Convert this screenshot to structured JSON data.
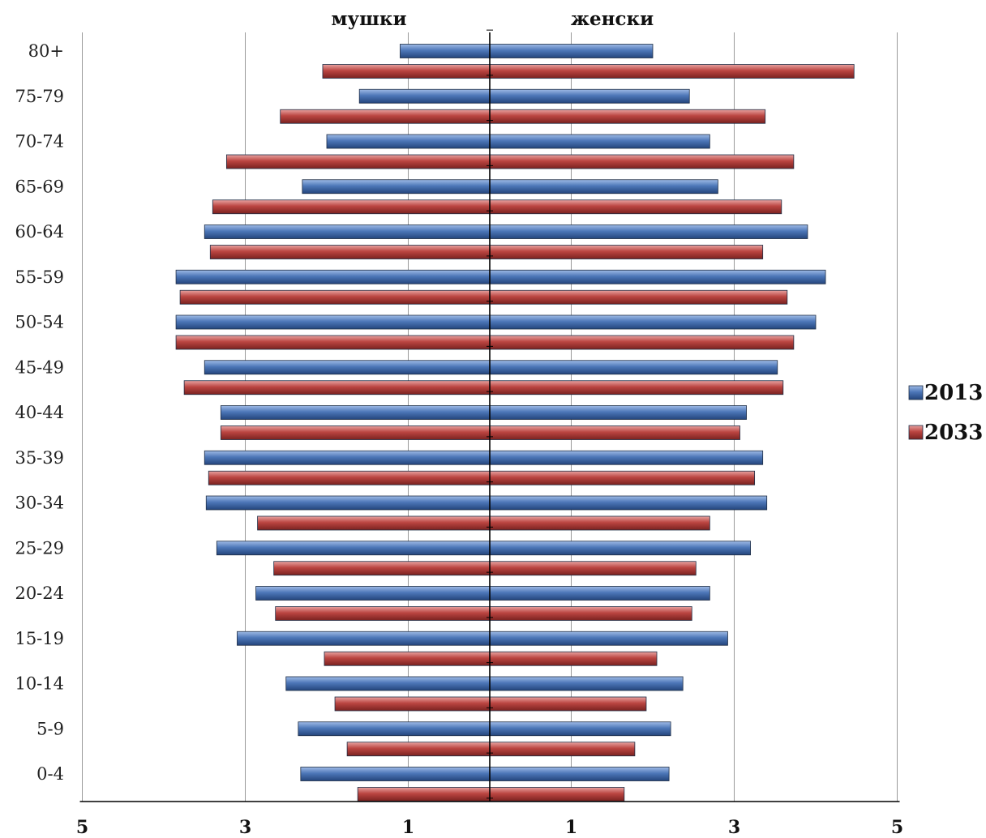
{
  "chart_data": {
    "type": "bar",
    "orientation": "horizontal",
    "subtype": "population-pyramid",
    "side_titles": {
      "left": "мушки",
      "right": "женски"
    },
    "categories": [
      "80+",
      "75-79",
      "70-74",
      "65-69",
      "60-64",
      "55-59",
      "50-54",
      "45-49",
      "40-44",
      "35-39",
      "30-34",
      "25-29",
      "20-24",
      "15-19",
      "10-14",
      "5-9",
      "0-4"
    ],
    "x_tick_labels": [
      "5",
      "3",
      "1",
      "1",
      "3",
      "5"
    ],
    "xlim": [
      -5,
      5
    ],
    "grid": true,
    "legend_position": "right",
    "series": [
      {
        "name": "2013",
        "color": "#4a72b0",
        "male": [
          1.1,
          1.6,
          2.0,
          2.3,
          3.5,
          3.85,
          3.85,
          3.5,
          3.3,
          3.5,
          3.48,
          3.35,
          2.87,
          3.1,
          2.5,
          2.35,
          2.32
        ],
        "female": [
          2.0,
          2.45,
          2.7,
          2.8,
          3.9,
          4.12,
          4.0,
          3.53,
          3.15,
          3.35,
          3.4,
          3.2,
          2.7,
          2.92,
          2.37,
          2.22,
          2.2
        ]
      },
      {
        "name": "2033",
        "color": "#b8413e",
        "male": [
          2.05,
          2.57,
          3.23,
          3.4,
          3.43,
          3.8,
          3.85,
          3.75,
          3.3,
          3.45,
          2.85,
          2.65,
          2.63,
          2.03,
          1.9,
          1.75,
          1.62
        ],
        "female": [
          4.47,
          3.38,
          3.73,
          3.58,
          3.35,
          3.65,
          3.73,
          3.6,
          3.07,
          3.25,
          2.7,
          2.53,
          2.48,
          2.05,
          1.92,
          1.78,
          1.65
        ]
      }
    ]
  }
}
